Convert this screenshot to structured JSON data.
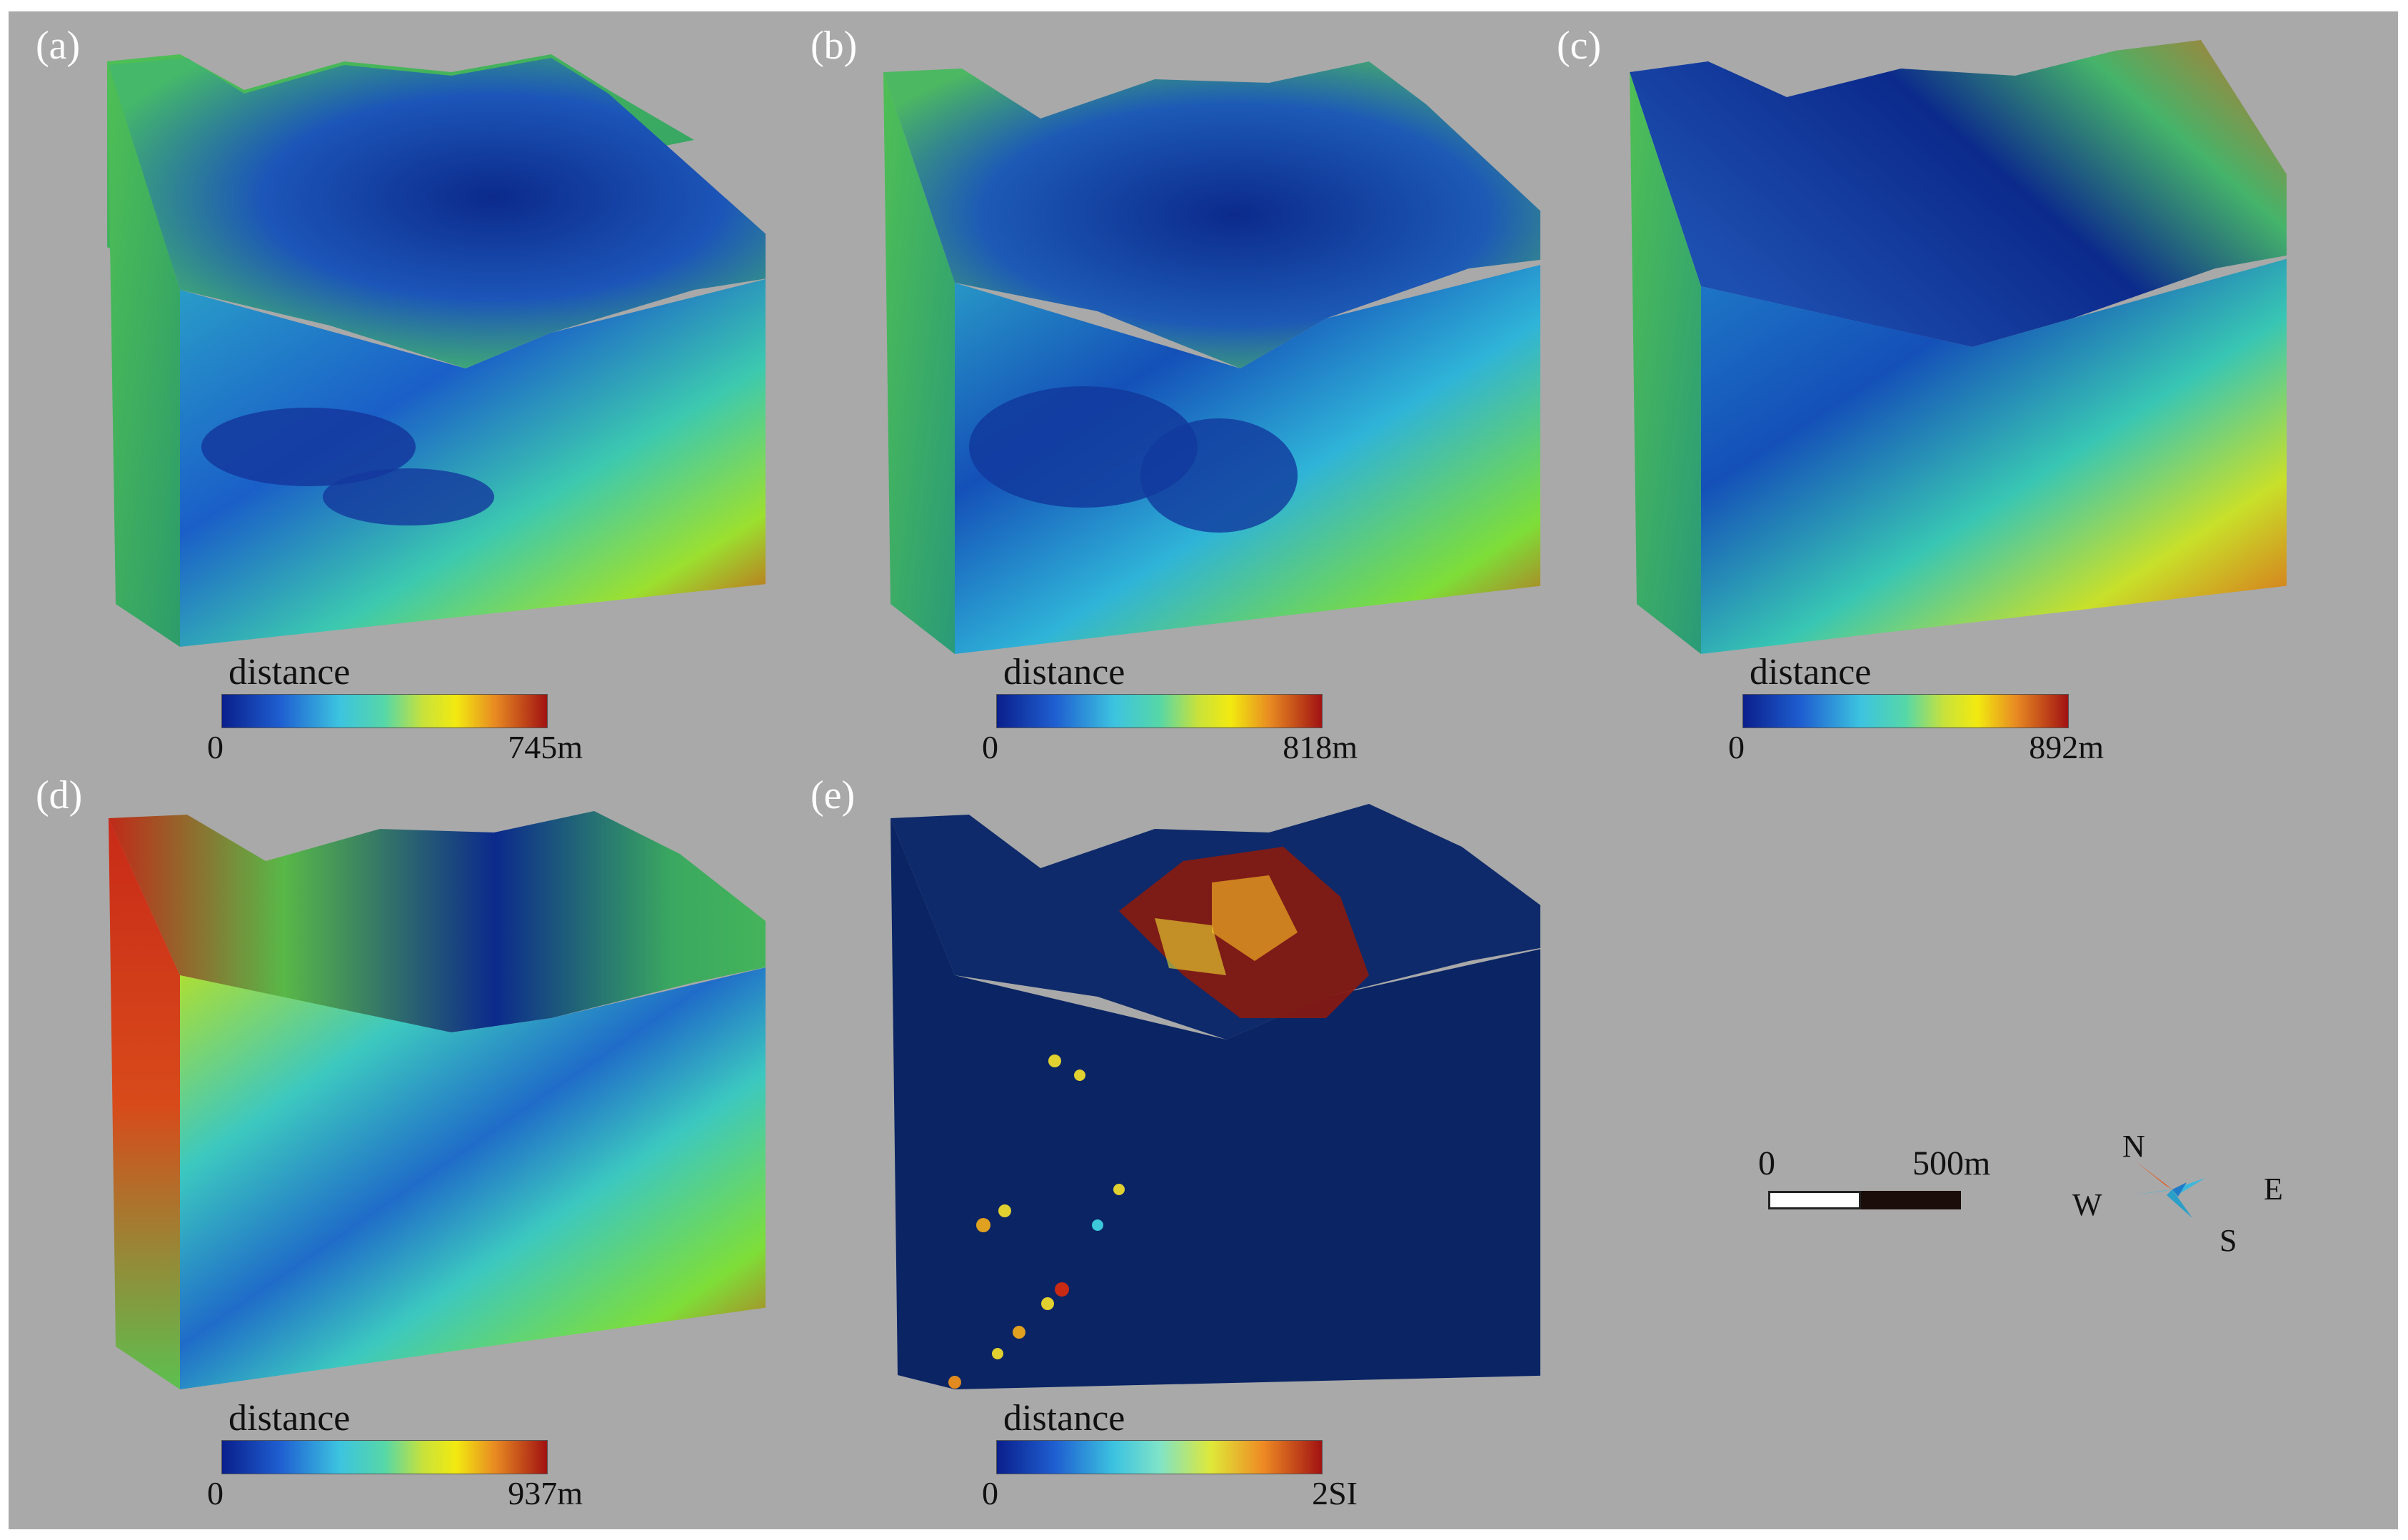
{
  "panels": [
    {
      "id": "a",
      "label": "(a)",
      "legend": {
        "title": "distance",
        "min": "0",
        "max": "745m"
      }
    },
    {
      "id": "b",
      "label": "(b)",
      "legend": {
        "title": "distance",
        "min": "0",
        "max": "818m"
      }
    },
    {
      "id": "c",
      "label": "(c)",
      "legend": {
        "title": "distance",
        "min": "0",
        "max": "892m"
      }
    },
    {
      "id": "d",
      "label": "(d)",
      "legend": {
        "title": "distance",
        "min": "0",
        "max": "937m"
      }
    },
    {
      "id": "e",
      "label": "(e)",
      "legend": {
        "title": "distance",
        "min": "0",
        "max": "2SI"
      }
    }
  ],
  "scale_bar": {
    "zero": "0",
    "max": "500m"
  },
  "compass": {
    "north": "N",
    "east": "E",
    "south": "S",
    "west": "W",
    "north_color": "#e8541a",
    "rose_color": "#3cb8dc"
  },
  "colors": {
    "background": "#a9a9a9",
    "low": "#0a1f8c",
    "mid": "#56d7a8",
    "high": "#a11212"
  }
}
